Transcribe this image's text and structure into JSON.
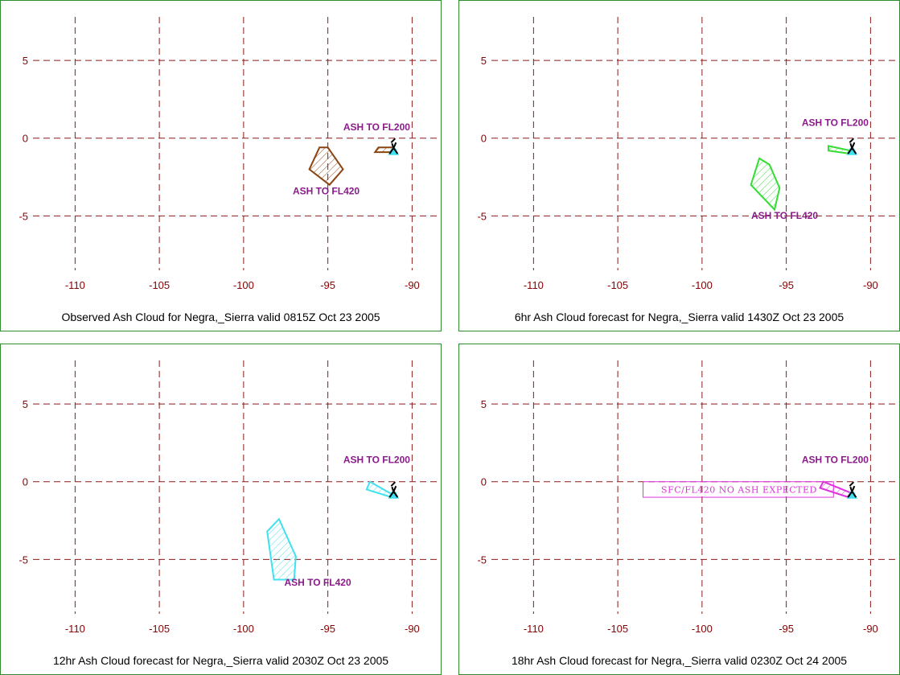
{
  "colors": {
    "frame": "#2e8b2e",
    "grid": "#8b1a1a",
    "tick_label": "#8b0000",
    "label": "#8b1a8b",
    "volcano": "#000000",
    "volcano_fill": "#40e0f0"
  },
  "icons": {
    "volcano": "volcano-icon"
  },
  "axes": {
    "x_ticks": [
      -110,
      -105,
      -100,
      -95,
      -90
    ],
    "y_ticks": [
      5,
      0,
      -5
    ],
    "x_tick_labels": [
      "-110",
      "-105",
      "-100",
      "-95",
      "-90"
    ],
    "y_tick_labels": [
      "5",
      "0",
      "-5"
    ],
    "xlim": [
      -112.5,
      -88.3
    ],
    "ylim": [
      -8.5,
      7.8
    ]
  },
  "volcano_location": {
    "lon": -91.1,
    "lat": -0.8
  },
  "panels": [
    {
      "caption": "Observed Ash Cloud for Negra,_Sierra valid 0815Z Oct 23 2005",
      "color": "#8b4513",
      "polygons": [
        [
          [
            -95.5,
            -0.6
          ],
          [
            -95.0,
            -0.6
          ],
          [
            -94.1,
            -2.0
          ],
          [
            -94.9,
            -3.0
          ],
          [
            -96.1,
            -2.0
          ]
        ],
        [
          [
            -92.0,
            -0.6
          ],
          [
            -91.1,
            -0.6
          ],
          [
            -91.1,
            -0.9
          ],
          [
            -92.2,
            -0.9
          ]
        ]
      ],
      "labels": [
        {
          "text": "ASH TO FL200",
          "lon": -92.1,
          "lat": 0.5
        },
        {
          "text": "ASH TO FL420",
          "lon": -95.1,
          "lat": -3.6
        }
      ]
    },
    {
      "caption": "6hr Ash Cloud forecast for Negra,_Sierra valid 1430Z Oct 23 2005",
      "color": "#33dd33",
      "polygons": [
        [
          [
            -96.6,
            -1.3
          ],
          [
            -96.0,
            -1.7
          ],
          [
            -95.4,
            -3.2
          ],
          [
            -95.7,
            -4.6
          ],
          [
            -97.1,
            -3.0
          ]
        ],
        [
          [
            -92.5,
            -0.5
          ],
          [
            -91.2,
            -0.8
          ],
          [
            -91.2,
            -1.0
          ],
          [
            -92.5,
            -0.8
          ]
        ]
      ],
      "labels": [
        {
          "text": "ASH TO FL200",
          "lon": -92.1,
          "lat": 0.8
        },
        {
          "text": "ASH TO FL420",
          "lon": -95.1,
          "lat": -5.2
        }
      ]
    },
    {
      "caption": "12hr Ash Cloud forecast for Negra,_Sierra valid 2030Z Oct 23 2005",
      "color": "#40e0f0",
      "polygons": [
        [
          [
            -97.9,
            -2.4
          ],
          [
            -96.9,
            -4.8
          ],
          [
            -97.0,
            -6.3
          ],
          [
            -98.2,
            -6.3
          ],
          [
            -98.6,
            -3.2
          ]
        ],
        [
          [
            -92.5,
            0.0
          ],
          [
            -91.2,
            -0.8
          ],
          [
            -91.2,
            -1.0
          ],
          [
            -92.7,
            -0.5
          ]
        ]
      ],
      "labels": [
        {
          "text": "ASH TO FL200",
          "lon": -92.1,
          "lat": 1.2
        },
        {
          "text": "ASH TO FL420",
          "lon": -95.6,
          "lat": -6.7
        }
      ]
    },
    {
      "caption": "18hr Ash Cloud forecast for Negra,_Sierra valid 0230Z Oct 24 2005",
      "color": "#dd33dd",
      "polygons": [
        [
          [
            -92.8,
            0.0
          ],
          [
            -91.2,
            -0.7
          ],
          [
            -91.3,
            -1.0
          ],
          [
            -93.0,
            -0.4
          ]
        ]
      ],
      "box_label": {
        "text": "SFC/FL420 NO ASH EXPECTED",
        "lon_left": -103.5,
        "lon_right": -92.2,
        "lat_top": 0.0,
        "lat_bottom": -1.0,
        "lon_text": -97.8,
        "lat_text": -0.5
      },
      "labels": [
        {
          "text": "ASH TO FL200",
          "lon": -92.1,
          "lat": 1.2
        }
      ]
    }
  ]
}
